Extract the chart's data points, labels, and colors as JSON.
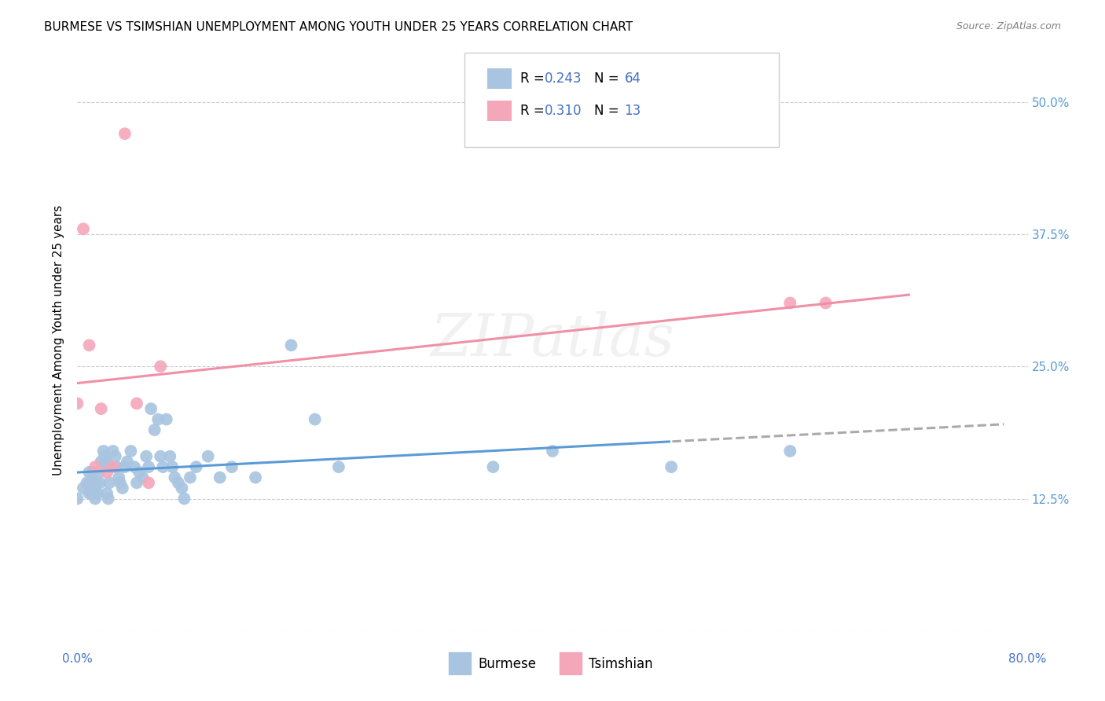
{
  "title": "BURMESE VS TSIMSHIAN UNEMPLOYMENT AMONG YOUTH UNDER 25 YEARS CORRELATION CHART",
  "source": "Source: ZipAtlas.com",
  "ylabel": "Unemployment Among Youth under 25 years",
  "yticks": [
    0.0,
    0.125,
    0.25,
    0.375,
    0.5
  ],
  "ytick_labels": [
    "",
    "12.5%",
    "25.0%",
    "37.5%",
    "50.0%"
  ],
  "xlim": [
    0.0,
    0.8
  ],
  "ylim": [
    0.0,
    0.55
  ],
  "burmese_color": "#a8c4e0",
  "tsimshian_color": "#f4a7b9",
  "burmese_R": 0.243,
  "burmese_N": 64,
  "tsimshian_R": 0.31,
  "tsimshian_N": 13,
  "burmese_x": [
    0.0,
    0.005,
    0.008,
    0.01,
    0.01,
    0.011,
    0.012,
    0.013,
    0.013,
    0.014,
    0.015,
    0.016,
    0.017,
    0.018,
    0.019,
    0.02,
    0.021,
    0.022,
    0.023,
    0.024,
    0.025,
    0.026,
    0.027,
    0.028,
    0.03,
    0.032,
    0.033,
    0.035,
    0.036,
    0.038,
    0.04,
    0.042,
    0.045,
    0.048,
    0.05,
    0.052,
    0.055,
    0.058,
    0.06,
    0.062,
    0.065,
    0.068,
    0.07,
    0.072,
    0.075,
    0.078,
    0.08,
    0.082,
    0.085,
    0.088,
    0.09,
    0.095,
    0.1,
    0.11,
    0.12,
    0.13,
    0.15,
    0.18,
    0.2,
    0.22,
    0.35,
    0.4,
    0.5,
    0.6
  ],
  "burmese_y": [
    0.125,
    0.135,
    0.14,
    0.13,
    0.15,
    0.14,
    0.13,
    0.15,
    0.14,
    0.13,
    0.125,
    0.14,
    0.13,
    0.15,
    0.14,
    0.16,
    0.155,
    0.17,
    0.165,
    0.16,
    0.13,
    0.125,
    0.14,
    0.155,
    0.17,
    0.165,
    0.155,
    0.145,
    0.14,
    0.135,
    0.155,
    0.16,
    0.17,
    0.155,
    0.14,
    0.15,
    0.145,
    0.165,
    0.155,
    0.21,
    0.19,
    0.2,
    0.165,
    0.155,
    0.2,
    0.165,
    0.155,
    0.145,
    0.14,
    0.135,
    0.125,
    0.145,
    0.155,
    0.165,
    0.145,
    0.155,
    0.145,
    0.27,
    0.2,
    0.155,
    0.155,
    0.17,
    0.155,
    0.17
  ],
  "tsimshian_x": [
    0.0,
    0.005,
    0.01,
    0.015,
    0.02,
    0.025,
    0.03,
    0.04,
    0.05,
    0.06,
    0.07,
    0.6,
    0.63
  ],
  "tsimshian_y": [
    0.215,
    0.38,
    0.27,
    0.155,
    0.21,
    0.15,
    0.155,
    0.47,
    0.215,
    0.14,
    0.25,
    0.31,
    0.31
  ],
  "burmese_line_color": "#5b9bd5",
  "tsimshian_line_color": "#f090a8",
  "burmese_line_dashed_color": "#aaaaaa",
  "legend_box_color": "#a8c4e0",
  "legend_box_color2": "#f4a7b9",
  "legend_text_color": "#4472c4"
}
